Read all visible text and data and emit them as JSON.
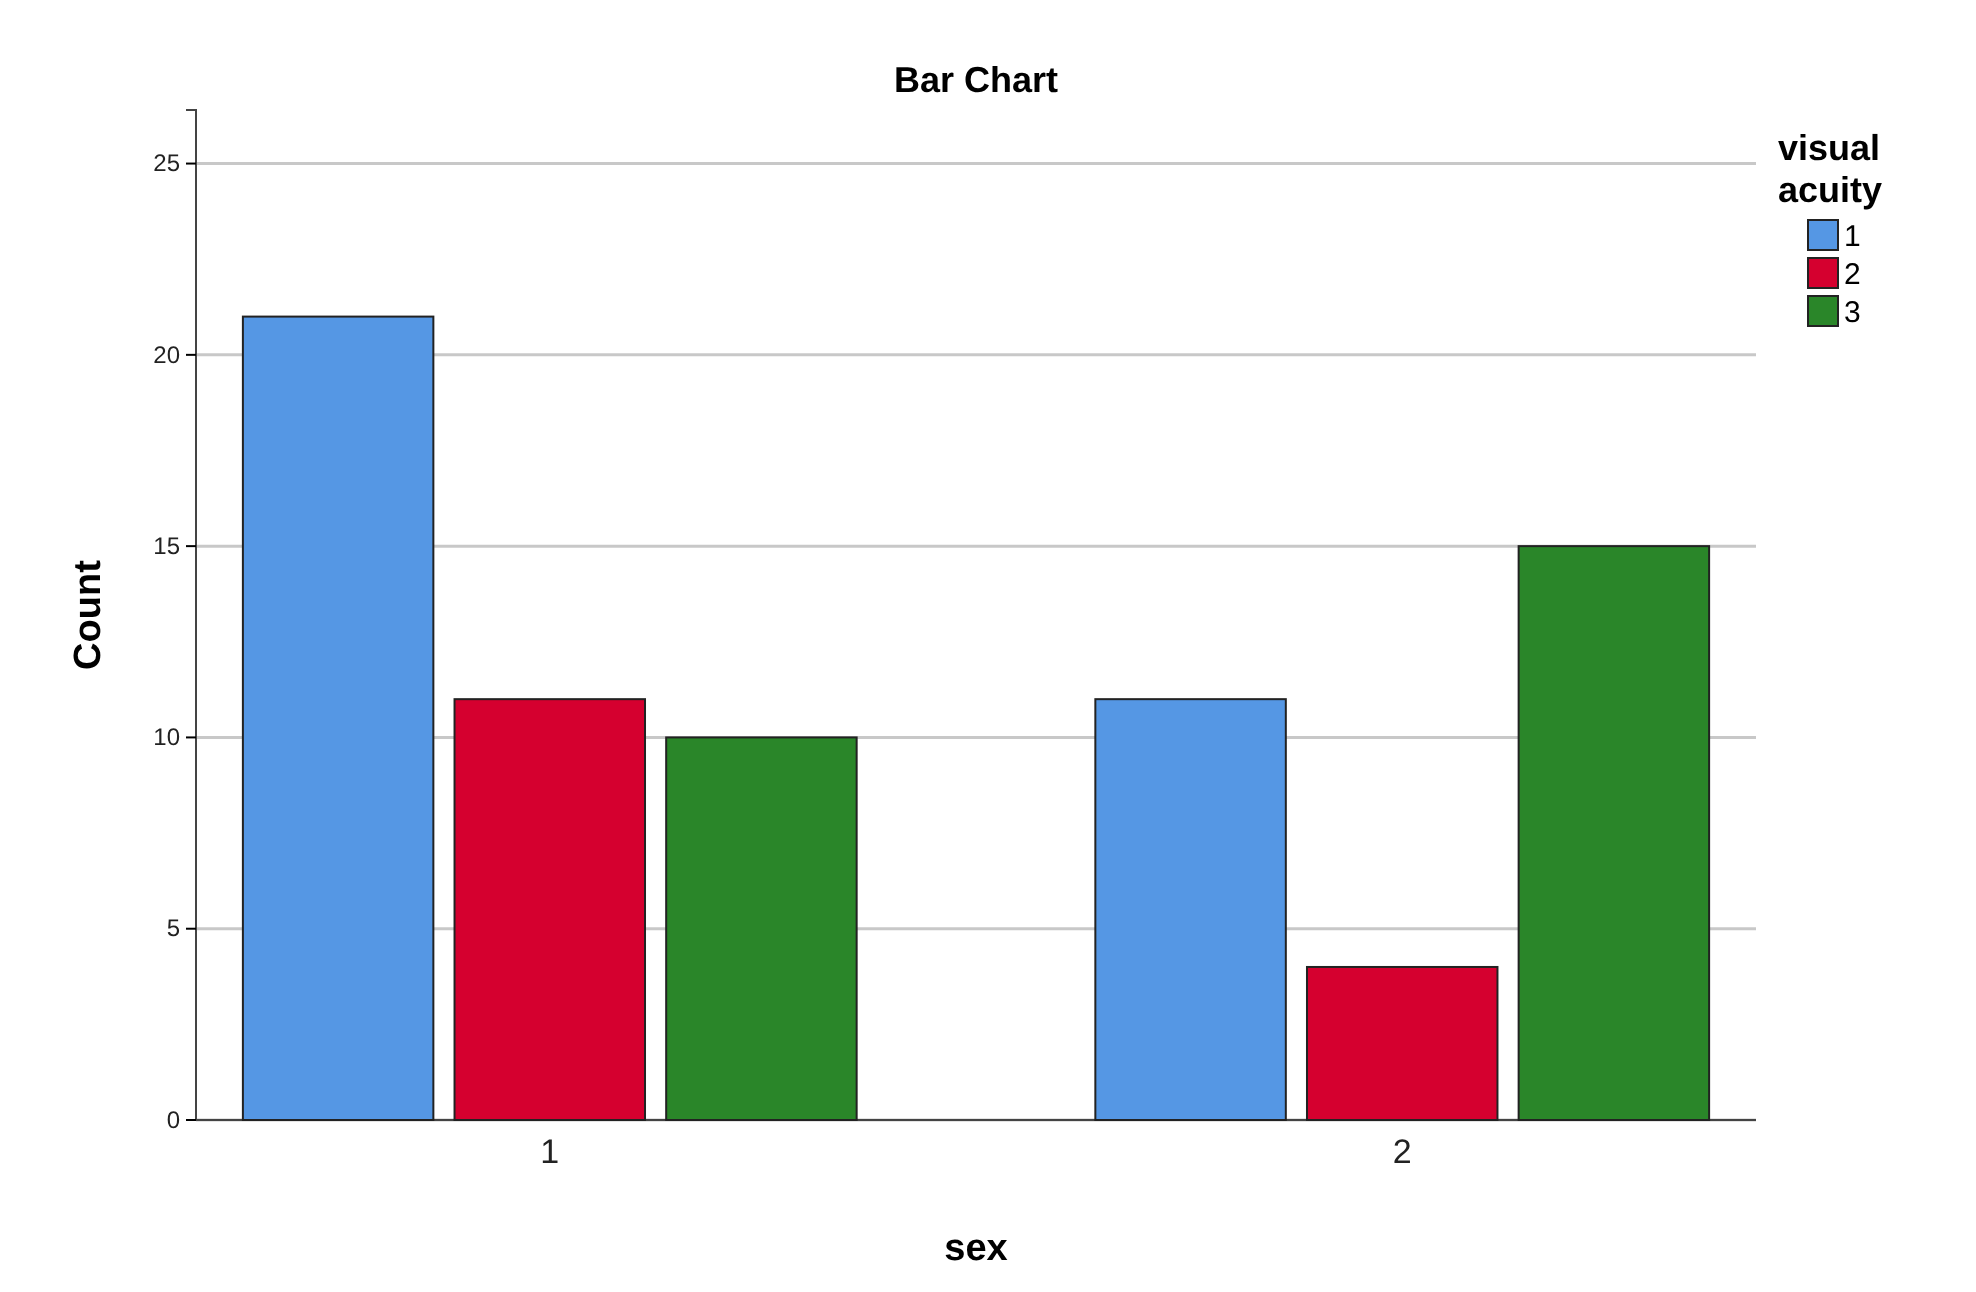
{
  "chart_data": {
    "type": "bar",
    "title": "Bar Chart",
    "xlabel": "sex",
    "ylabel": "Count",
    "legend_title": "visual acuity",
    "categories": [
      "1",
      "2"
    ],
    "series": [
      {
        "name": "1",
        "color": "#5597e4",
        "values": [
          21,
          11
        ]
      },
      {
        "name": "2",
        "color": "#d5002f",
        "values": [
          11,
          4
        ]
      },
      {
        "name": "3",
        "color": "#2a8629",
        "values": [
          10,
          15
        ]
      }
    ],
    "ylim": [
      0,
      26.4
    ],
    "yticks": [
      0,
      5,
      10,
      15,
      20,
      25
    ],
    "grid": "y",
    "legend": "top right"
  }
}
